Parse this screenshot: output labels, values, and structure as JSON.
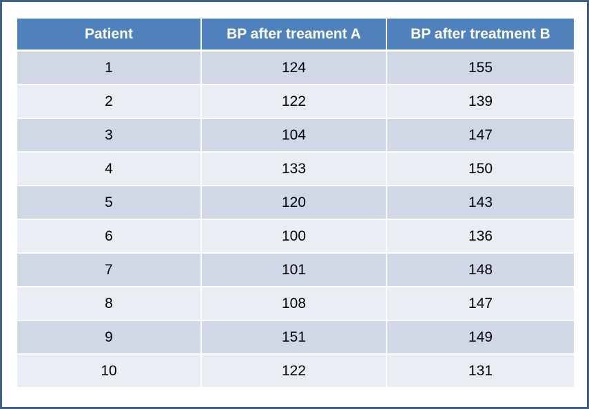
{
  "table": {
    "headers": [
      "Patient",
      "BP after treament A",
      "BP after treatment B"
    ],
    "rows": [
      [
        "1",
        "124",
        "155"
      ],
      [
        "2",
        "122",
        "139"
      ],
      [
        "3",
        "104",
        "147"
      ],
      [
        "4",
        "133",
        "150"
      ],
      [
        "5",
        "120",
        "143"
      ],
      [
        "6",
        "100",
        "136"
      ],
      [
        "7",
        "101",
        "148"
      ],
      [
        "8",
        "108",
        "147"
      ],
      [
        "9",
        "151",
        "149"
      ],
      [
        "10",
        "122",
        "131"
      ]
    ]
  },
  "colors": {
    "header_bg": "#4f81bd",
    "row_odd_bg": "#d0d8e8",
    "row_even_bg": "#e9edf4",
    "frame_border": "#3d5f8c"
  }
}
